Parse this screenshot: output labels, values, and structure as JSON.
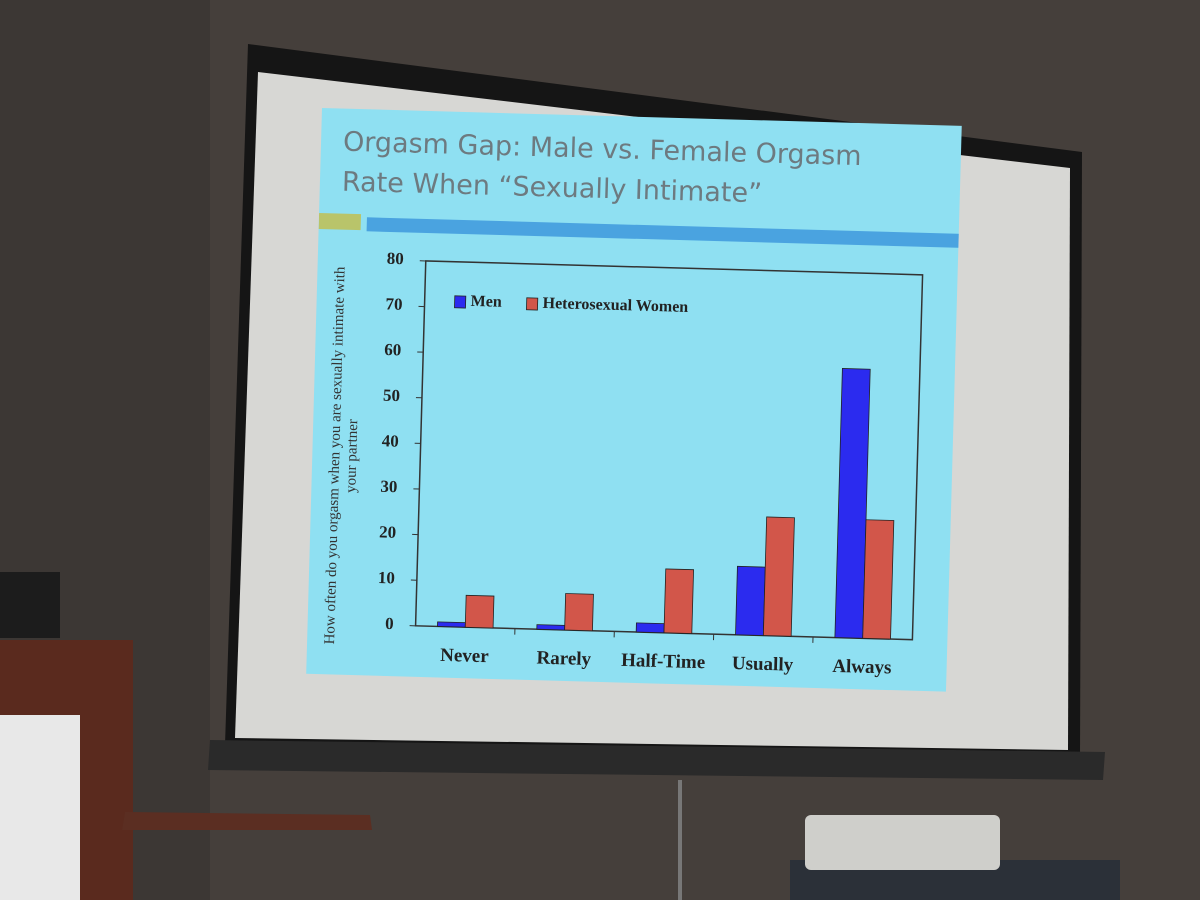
{
  "chart_data": {
    "type": "bar",
    "title": "Orgasm Gap: Male vs. Female Orgasm Rate When “Sexually Intimate”",
    "y_label": "How often do you orgasm when you are sexually intimate with your partner",
    "categories": [
      "Never",
      "Rarely",
      "Half-Time",
      "Usually",
      "Always"
    ],
    "series": [
      {
        "name": "Men",
        "color": "#2b2bef",
        "values": [
          1,
          1,
          2,
          15,
          59
        ]
      },
      {
        "name": "Heterosexual Women",
        "color": "#d2564a",
        "values": [
          7,
          8,
          14,
          26,
          26
        ]
      }
    ],
    "ylim": [
      0,
      80
    ],
    "yticks": [
      0,
      10,
      20,
      30,
      40,
      50,
      60,
      70,
      80
    ],
    "grid": false,
    "legend": "upper left"
  }
}
